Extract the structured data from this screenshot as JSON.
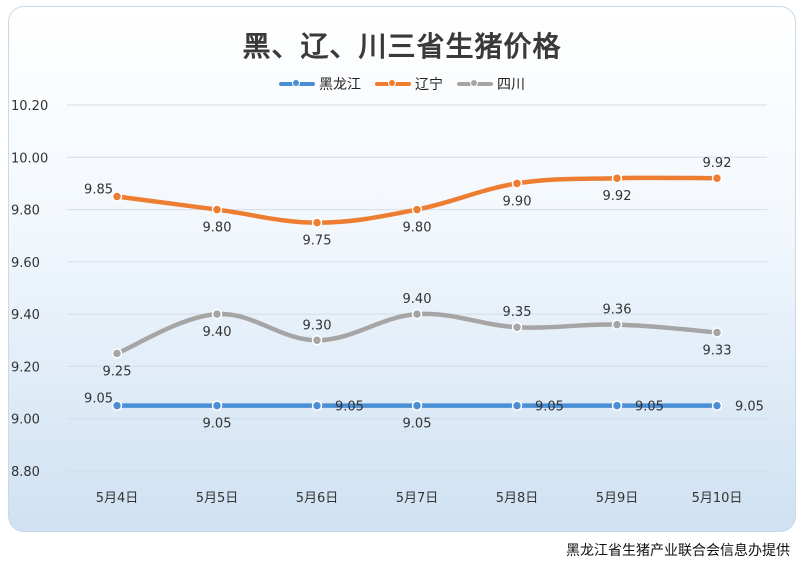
{
  "chart_data": {
    "type": "line",
    "title": "黑、辽、川三省生猪价格",
    "categories": [
      "5月4日",
      "5月5日",
      "5月6日",
      "5月7日",
      "5月8日",
      "5月9日",
      "5月10日"
    ],
    "ylim": [
      8.8,
      10.2
    ],
    "yticks": [
      "10.20",
      "10.00",
      "9.80",
      "9.60",
      "9.40",
      "9.20",
      "9.00",
      "8.80"
    ],
    "grid": true,
    "legend_position": "top",
    "series": [
      {
        "name": "黑龙江",
        "color": "#4a8fd4",
        "values": [
          9.05,
          9.05,
          9.05,
          9.05,
          9.05,
          9.05,
          9.05
        ],
        "labels": [
          "9.05",
          "9.05",
          "9.05",
          "9.05",
          "9.05",
          "9.05",
          "9.05"
        ]
      },
      {
        "name": "辽宁",
        "color": "#ed7d31",
        "values": [
          9.85,
          9.8,
          9.75,
          9.8,
          9.9,
          9.92,
          9.92
        ],
        "labels": [
          "9.85",
          "9.80",
          "9.75",
          "9.80",
          "9.90",
          "9.92",
          "9.92"
        ]
      },
      {
        "name": "四川",
        "color": "#a5a5a5",
        "values": [
          9.25,
          9.4,
          9.3,
          9.4,
          9.35,
          9.36,
          9.33
        ],
        "labels": [
          "9.25",
          "9.40",
          "9.30",
          "9.40",
          "9.35",
          "9.36",
          "9.33"
        ]
      }
    ]
  },
  "footer": {
    "source": "黑龙江省生猪产业联合会信息办提供"
  }
}
